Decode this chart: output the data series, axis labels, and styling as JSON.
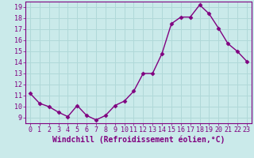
{
  "x": [
    0,
    1,
    2,
    3,
    4,
    5,
    6,
    7,
    8,
    9,
    10,
    11,
    12,
    13,
    14,
    15,
    16,
    17,
    18,
    19,
    20,
    21,
    22,
    23
  ],
  "y": [
    11.2,
    10.3,
    10.0,
    9.5,
    9.1,
    10.1,
    9.2,
    8.8,
    9.2,
    10.1,
    10.5,
    11.4,
    13.0,
    13.0,
    14.8,
    17.5,
    18.1,
    18.1,
    19.2,
    18.4,
    17.1,
    15.7,
    15.0,
    14.1
  ],
  "line_color": "#800080",
  "marker": "D",
  "marker_size": 2.5,
  "line_width": 1.0,
  "bg_color": "#caeaea",
  "grid_color": "#b0d8d8",
  "xlabel": "Windchill (Refroidissement éolien,°C)",
  "xlabel_color": "#800080",
  "tick_color": "#800080",
  "spine_color": "#800080",
  "xlim": [
    -0.5,
    23.5
  ],
  "ylim": [
    8.5,
    19.5
  ],
  "yticks": [
    9,
    10,
    11,
    12,
    13,
    14,
    15,
    16,
    17,
    18,
    19
  ],
  "xticks": [
    0,
    1,
    2,
    3,
    4,
    5,
    6,
    7,
    8,
    9,
    10,
    11,
    12,
    13,
    14,
    15,
    16,
    17,
    18,
    19,
    20,
    21,
    22,
    23
  ],
  "xlabel_fontsize": 7.0,
  "tick_fontsize": 6.0
}
